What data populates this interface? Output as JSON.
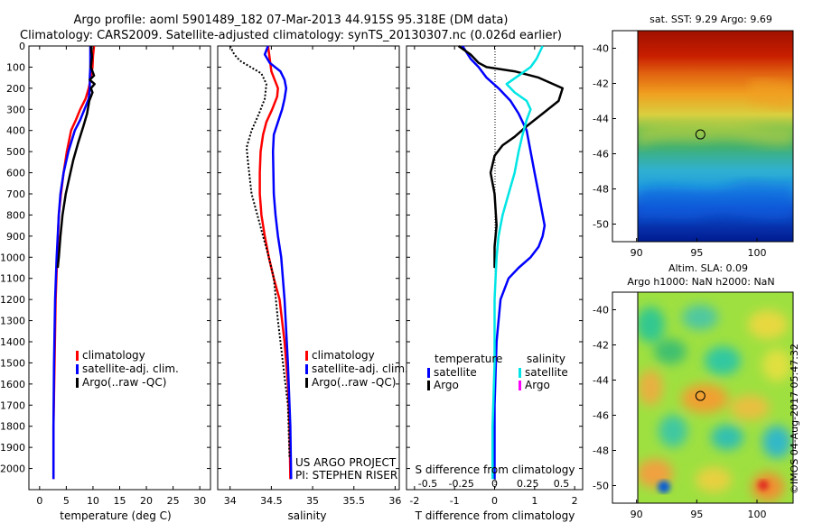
{
  "header": {
    "line1": "Argo profile: aoml 5901489_182 07-Mar-2013 44.915S 95.318E (DM data)",
    "line2": "Climatology: CARS2009. Satellite-adjusted climatology: synTS_20130307.nc (0.026d earlier)"
  },
  "stamp": "©IMOS 04-Aug-2017 05:47:32",
  "colors": {
    "red": "#ff0000",
    "blue": "#0000ff",
    "black": "#000000",
    "cyan": "#00e5e5",
    "magenta": "#ff00ff"
  },
  "chart_data": [
    {
      "type": "line",
      "xlabel": "temperature (deg C)",
      "ylabel": "",
      "xlim": [
        -2,
        32
      ],
      "ylim": [
        2100,
        0
      ],
      "xticks": [
        0,
        5,
        10,
        15,
        20,
        25,
        30
      ],
      "yticks": [
        0,
        100,
        200,
        300,
        400,
        500,
        600,
        700,
        800,
        900,
        1000,
        1100,
        1200,
        1300,
        1400,
        1500,
        1600,
        1700,
        1800,
        1900,
        2000
      ],
      "legend": [
        "climatology",
        "satellite-adj. clim.",
        "Argo(..raw -QC)"
      ],
      "legend_position": "lower-center",
      "series": [
        {
          "name": "climatology",
          "color": "#ff0000",
          "x": [
            10.2,
            10.0,
            9.9,
            9.6,
            9.2,
            8.6,
            7.6,
            6.8,
            5.9,
            5.1,
            4.5,
            4.0,
            3.6,
            3.3,
            3.0,
            2.8,
            2.6,
            2.6
          ],
          "y": [
            0,
            50,
            100,
            150,
            200,
            250,
            300,
            350,
            400,
            500,
            600,
            700,
            800,
            1000,
            1200,
            1500,
            1800,
            2050
          ]
        },
        {
          "name": "satellite-adj. clim.",
          "color": "#0000ff",
          "x": [
            9.5,
            9.5,
            9.5,
            9.4,
            9.4,
            9.2,
            8.4,
            7.6,
            6.6,
            5.4,
            4.5,
            3.9,
            3.6,
            3.2,
            2.9,
            2.7,
            2.6,
            2.6
          ],
          "y": [
            0,
            50,
            100,
            150,
            200,
            250,
            300,
            350,
            400,
            500,
            600,
            700,
            800,
            1000,
            1200,
            1500,
            1800,
            2050
          ]
        },
        {
          "name": "Argo(..raw -QC)",
          "color": "#000000",
          "x": [
            9.6,
            9.8,
            9.6,
            10.2,
            9.4,
            10.3,
            9.6,
            9.9,
            9.3,
            8.9,
            8.2,
            7.2,
            6.3,
            5.6,
            4.9,
            4.3,
            3.9,
            3.6,
            3.4
          ],
          "y": [
            0,
            50,
            100,
            140,
            160,
            180,
            200,
            220,
            260,
            320,
            380,
            460,
            540,
            620,
            700,
            800,
            900,
            1000,
            1050
          ]
        }
      ]
    },
    {
      "type": "line",
      "xlabel": "salinity",
      "ylabel": "",
      "xlim": [
        33.85,
        36.05
      ],
      "ylim": [
        2100,
        0
      ],
      "xticks": [
        34,
        34.5,
        35,
        35.5,
        36
      ],
      "legend": [
        "climatology",
        "satellite-adj. clim.",
        "Argo(..raw -QC)"
      ],
      "legend_position": "lower-center",
      "annotations": [
        "US ARGO PROJECT",
        "PI: STEPHEN RISER"
      ],
      "series": [
        {
          "name": "climatology",
          "color": "#ff0000",
          "x": [
            34.46,
            34.48,
            34.5,
            34.53,
            34.56,
            34.58,
            34.57,
            34.51,
            34.44,
            34.4,
            34.37,
            34.36,
            34.36,
            34.38,
            34.42,
            34.47,
            34.53,
            34.6,
            34.66,
            34.7,
            34.72,
            34.73
          ],
          "y": [
            0,
            60,
            120,
            150,
            180,
            200,
            240,
            300,
            360,
            420,
            500,
            600,
            700,
            800,
            900,
            1000,
            1100,
            1200,
            1400,
            1600,
            1800,
            2050
          ]
        },
        {
          "name": "satellite-adj. clim.",
          "color": "#0000ff",
          "x": [
            34.46,
            34.42,
            34.48,
            34.61,
            34.66,
            34.68,
            34.66,
            34.63,
            34.58,
            34.53,
            34.52,
            34.53,
            34.55,
            34.58,
            34.62,
            34.66,
            34.7,
            34.73,
            34.74
          ],
          "y": [
            0,
            40,
            80,
            120,
            160,
            200,
            250,
            300,
            360,
            420,
            500,
            700,
            800,
            900,
            1000,
            1200,
            1500,
            1800,
            2050
          ]
        },
        {
          "name": "Argo(..raw -QC)",
          "color": "#000000",
          "x": [
            34.0,
            34.05,
            34.12,
            34.25,
            34.38,
            34.44,
            34.42,
            34.35,
            34.26,
            34.2,
            34.22,
            34.26,
            34.33,
            34.4,
            34.47,
            34.53,
            34.58,
            34.64,
            34.7,
            34.72
          ],
          "y": [
            0,
            40,
            70,
            100,
            130,
            180,
            250,
            320,
            400,
            480,
            560,
            700,
            800,
            900,
            1000,
            1100,
            1300,
            1500,
            1700,
            1950
          ]
        }
      ]
    },
    {
      "type": "line",
      "xlabel": "T difference from climatology",
      "ylabel": "",
      "xlim": [
        -2.2,
        2.2
      ],
      "ylim": [
        2100,
        0
      ],
      "xticks": [
        -2,
        -1,
        0,
        1,
        2
      ],
      "secondary_xlabel": "S difference from climatology",
      "secondary_xticks": [
        "-0.5",
        "-0.25",
        "0",
        "0.25",
        "0.5"
      ],
      "legend_titles": [
        "temperature",
        "salinity"
      ],
      "legend": [
        "satellite",
        "Argo",
        "satellite",
        "Argo"
      ],
      "legend_position": "lower",
      "series": [
        {
          "name": "satellite",
          "group": "temperature",
          "color": "#0000ff",
          "x": [
            -0.8,
            -0.6,
            -0.4,
            -0.2,
            0.1,
            0.4,
            0.6,
            0.8,
            0.9,
            1.0,
            1.1,
            1.2,
            1.25,
            1.2,
            1.1,
            0.9,
            0.6,
            0.35,
            0.15,
            0.05,
            0.0,
            0.0
          ],
          "y": [
            0,
            60,
            100,
            150,
            200,
            260,
            320,
            400,
            500,
            600,
            700,
            800,
            850,
            900,
            950,
            1000,
            1050,
            1100,
            1200,
            1400,
            1700,
            2050
          ]
        },
        {
          "name": "Argo",
          "group": "temperature",
          "color": "#000000",
          "x": [
            -0.9,
            -0.6,
            -0.4,
            -0.2,
            0.5,
            1.1,
            1.7,
            1.6,
            1.2,
            0.8,
            0.5,
            0.2,
            0.0,
            -0.1,
            0.0,
            0.05,
            0.0,
            0.0
          ],
          "y": [
            0,
            40,
            80,
            100,
            120,
            150,
            200,
            260,
            320,
            380,
            430,
            470,
            520,
            600,
            700,
            850,
            950,
            1050
          ]
        },
        {
          "name": "satellite",
          "group": "salinity",
          "color": "#00e5e5",
          "x": [
            1.2,
            1.05,
            0.9,
            0.6,
            0.3,
            0.5,
            0.8,
            0.9,
            0.8,
            0.7,
            0.6,
            0.5,
            0.35,
            0.2,
            0.1,
            0.05,
            0.0,
            0.0,
            -0.05,
            -0.05
          ],
          "y": [
            0,
            60,
            100,
            140,
            180,
            220,
            260,
            300,
            350,
            420,
            500,
            600,
            700,
            800,
            900,
            1000,
            1200,
            1500,
            1800,
            2050
          ]
        },
        {
          "name": "Argo",
          "group": "salinity",
          "color": "#ff00ff",
          "x": [],
          "y": []
        }
      ]
    },
    {
      "type": "heatmap",
      "title": "sat. SST: 9.29 Argo: 9.69",
      "xlim": [
        88,
        103
      ],
      "ylim": [
        -51,
        -39
      ],
      "xticks": [
        90,
        95,
        100
      ],
      "yticks": [
        -40,
        -42,
        -44,
        -46,
        -48,
        -50
      ],
      "marker": {
        "lon": 95.3,
        "lat": -44.9
      }
    },
    {
      "type": "heatmap",
      "title": "Altim. SLA: 0.09",
      "subtitle": "Argo h1000: NaN h2000: NaN",
      "xlim": [
        88,
        103
      ],
      "ylim": [
        -51,
        -39
      ],
      "xticks": [
        90,
        95,
        100
      ],
      "yticks": [
        -40,
        -42,
        -44,
        -46,
        -48,
        -50
      ],
      "marker": {
        "lon": 95.3,
        "lat": -44.9
      }
    }
  ]
}
